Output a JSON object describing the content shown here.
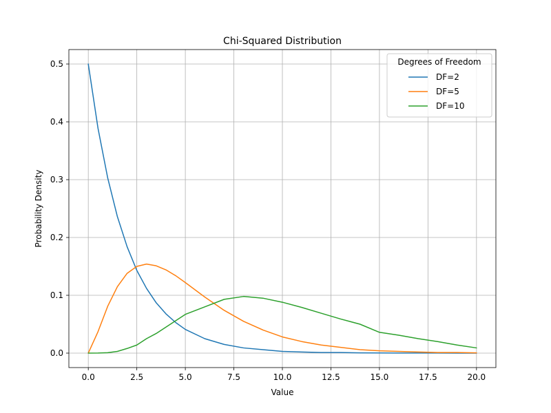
{
  "chart_data": {
    "type": "line",
    "title": "Chi-Squared Distribution",
    "xlabel": "Value",
    "ylabel": "Probability Density",
    "xlim": [
      -1,
      21
    ],
    "ylim": [
      -0.025,
      0.525
    ],
    "xticks": [
      0.0,
      2.5,
      5.0,
      7.5,
      10.0,
      12.5,
      15.0,
      17.5,
      20.0
    ],
    "xtick_labels": [
      "0.0",
      "2.5",
      "5.0",
      "7.5",
      "10.0",
      "12.5",
      "15.0",
      "17.5",
      "20.0"
    ],
    "yticks": [
      0.0,
      0.1,
      0.2,
      0.3,
      0.4,
      0.5
    ],
    "ytick_labels": [
      "0.0",
      "0.1",
      "0.2",
      "0.3",
      "0.4",
      "0.5"
    ],
    "grid": true,
    "legend": {
      "title": "Degrees of Freedom",
      "placement": "top-right"
    },
    "x": [
      0,
      0.5,
      1,
      1.5,
      2,
      2.5,
      3,
      3.5,
      4,
      4.5,
      5,
      6,
      7,
      8,
      9,
      10,
      11,
      12,
      13,
      14,
      15,
      16,
      17,
      18,
      19,
      20
    ],
    "series": [
      {
        "name": "DF=2",
        "color": "#1f77b4",
        "values": [
          0.5,
          0.389,
          0.303,
          0.236,
          0.184,
          0.143,
          0.112,
          0.087,
          0.068,
          0.053,
          0.041,
          0.025,
          0.015,
          0.009,
          0.006,
          0.003,
          0.002,
          0.001,
          0.001,
          0.0005,
          0.0003,
          0.0002,
          0.0001,
          0.0001,
          0.0,
          0.0
        ]
      },
      {
        "name": "DF=5",
        "color": "#ff7f0e",
        "values": [
          0.0,
          0.037,
          0.081,
          0.115,
          0.138,
          0.15,
          0.154,
          0.151,
          0.144,
          0.134,
          0.122,
          0.097,
          0.074,
          0.055,
          0.04,
          0.028,
          0.02,
          0.014,
          0.01,
          0.006,
          0.004,
          0.003,
          0.002,
          0.001,
          0.001,
          0.0005
        ]
      },
      {
        "name": "DF=10",
        "color": "#2ca02c",
        "values": [
          0.0,
          0.0001,
          0.0008,
          0.003,
          0.008,
          0.014,
          0.025,
          0.034,
          0.045,
          0.056,
          0.067,
          0.08,
          0.093,
          0.098,
          0.095,
          0.088,
          0.079,
          0.069,
          0.059,
          0.05,
          0.036,
          0.031,
          0.025,
          0.02,
          0.014,
          0.009
        ]
      }
    ]
  }
}
